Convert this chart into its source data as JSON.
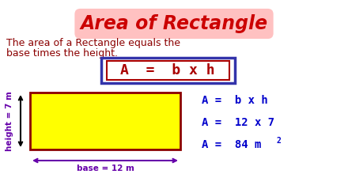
{
  "title": "Area of Rectangle",
  "title_color": "#cc0000",
  "title_fontsize": 17,
  "subtitle_line1": "The area of a Rectangle equals the",
  "subtitle_line2": "base times the height.",
  "subtitle_color": "#8b0000",
  "subtitle_fontsize": 9,
  "formula_text": "A  =  b x h",
  "formula_color": "#aa0000",
  "formula_fontsize": 13,
  "formula_box_outer": "#3333aa",
  "formula_box_inner": "#aa0000",
  "rect_fill": "#ffff00",
  "rect_edge": "#8b0000",
  "height_label": "height = 7 m",
  "base_label": "base = 12 m",
  "label_color": "#6600aa",
  "label_fontsize": 7.5,
  "calc_line1": "A =  b x h",
  "calc_line2": "A =  12 x 7",
  "calc_line3": "A =  84 m",
  "calc_sup": "2",
  "calc_color": "#0000cc",
  "calc_fontsize": 10,
  "arrow_color": "#000000",
  "bg_color": "#ffffff"
}
